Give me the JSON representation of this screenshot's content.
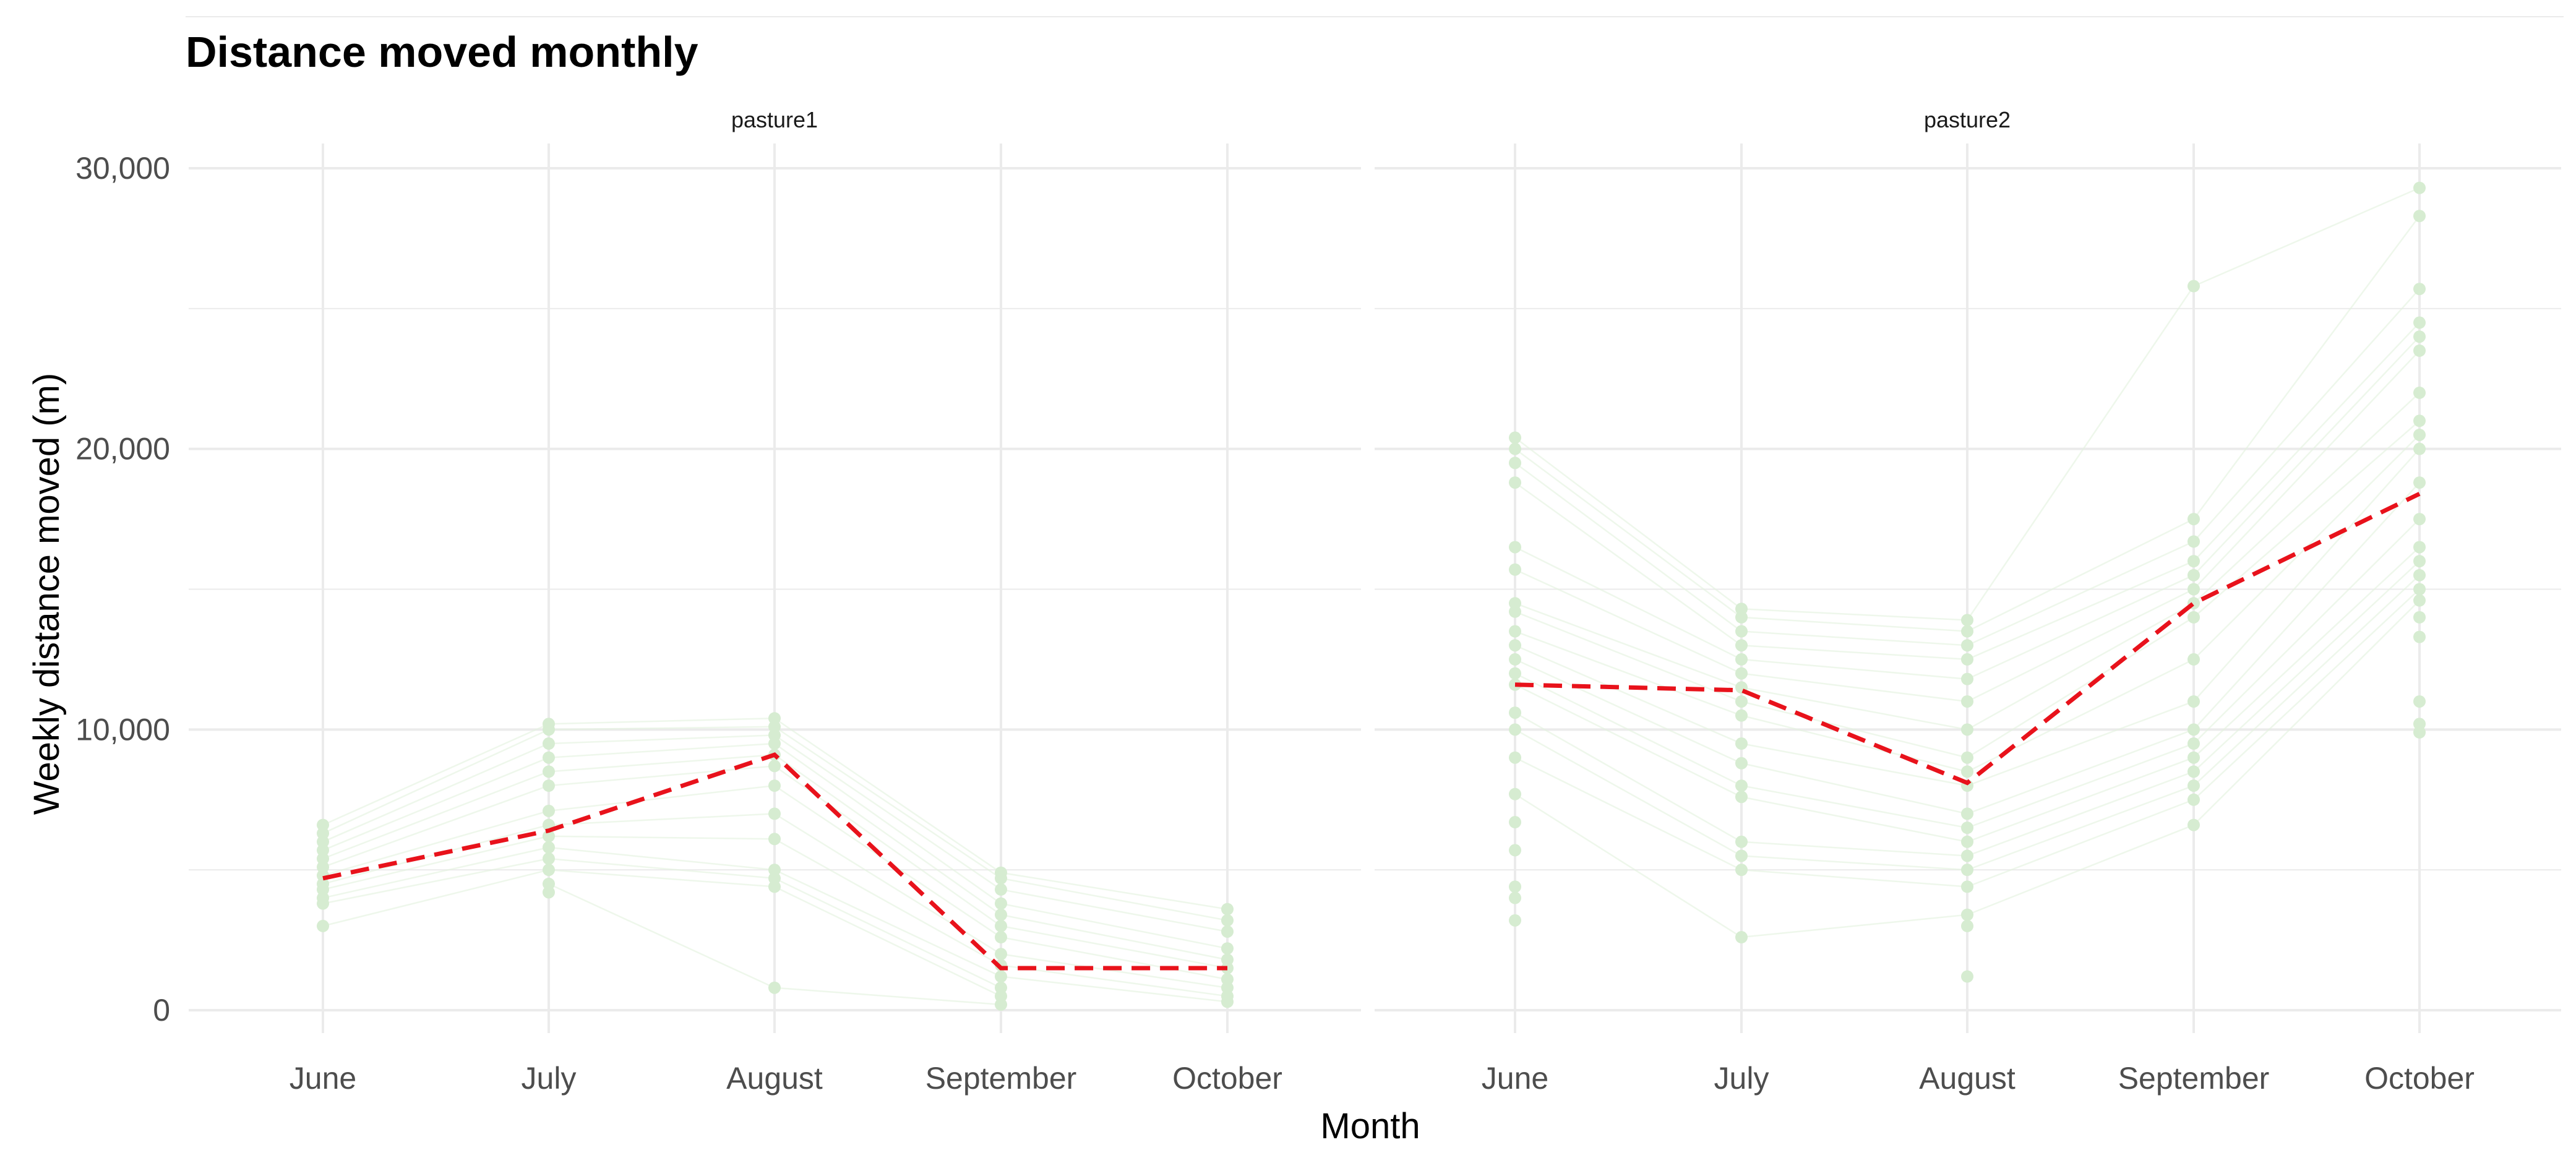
{
  "chart_data": {
    "type": "line",
    "title": "Distance moved monthly",
    "xlabel": "Month",
    "ylabel": "Weekly distance moved (m)",
    "ylim": [
      -1000,
      30700
    ],
    "y_ticks": [
      0,
      10000,
      20000,
      30000
    ],
    "y_tick_labels": [
      "0",
      "10,000",
      "20,000",
      "30,000"
    ],
    "grid": true,
    "colors": {
      "points": "#d6ecd1",
      "lines": "#e3f2df",
      "mean": "#e8121b",
      "grid": "#ebebeb"
    },
    "categories": [
      "June",
      "July",
      "August",
      "September",
      "October"
    ],
    "panels": [
      {
        "name": "pasture1",
        "mean": [
          4700,
          6400,
          9100,
          1500,
          1500
        ],
        "points": [
          [
            3000,
            3800,
            4000,
            4300,
            4500,
            4800,
            5100,
            5400,
            5700,
            6000,
            6300,
            6600
          ],
          [
            4200,
            4500,
            5000,
            5400,
            5800,
            6200,
            6600,
            7100,
            8000,
            8500,
            9000,
            9500,
            10000,
            10200
          ],
          [
            800,
            4400,
            4700,
            5000,
            6100,
            7000,
            8000,
            8700,
            9100,
            9500,
            9800,
            10100,
            10400
          ],
          [
            200,
            500,
            800,
            1200,
            1600,
            2000,
            2600,
            3000,
            3400,
            3800,
            4300,
            4700,
            4900
          ],
          [
            300,
            500,
            800,
            1100,
            1500,
            1800,
            2200,
            2800,
            3200,
            3600
          ]
        ]
      },
      {
        "name": "pasture2",
        "mean": [
          11600,
          11400,
          8100,
          14500,
          18400
        ],
        "points": [
          [
            3200,
            4000,
            4400,
            5700,
            6700,
            7700,
            9000,
            10000,
            10600,
            11600,
            12000,
            12500,
            13000,
            13500,
            14200,
            14500,
            15700,
            16500,
            18800,
            19500,
            20000,
            20400
          ],
          [
            2600,
            5000,
            5500,
            6000,
            7600,
            8000,
            8800,
            9500,
            10500,
            11000,
            11500,
            12000,
            12500,
            13000,
            13500,
            14000,
            14300
          ],
          [
            1200,
            3000,
            3400,
            4400,
            5000,
            5500,
            6000,
            6500,
            7000,
            8000,
            8500,
            9000,
            10000,
            11000,
            11800,
            12500,
            13000,
            13500,
            13900
          ],
          [
            6600,
            7500,
            8000,
            8500,
            9000,
            9500,
            10000,
            11000,
            12500,
            14000,
            14500,
            15000,
            15500,
            16000,
            16700,
            17500,
            25800
          ],
          [
            9900,
            10200,
            11000,
            13300,
            14000,
            14600,
            15000,
            15500,
            16000,
            16500,
            17500,
            18800,
            20000,
            20500,
            21000,
            22000,
            23500,
            24000,
            24500,
            25700,
            28300,
            29300
          ]
        ]
      }
    ]
  }
}
